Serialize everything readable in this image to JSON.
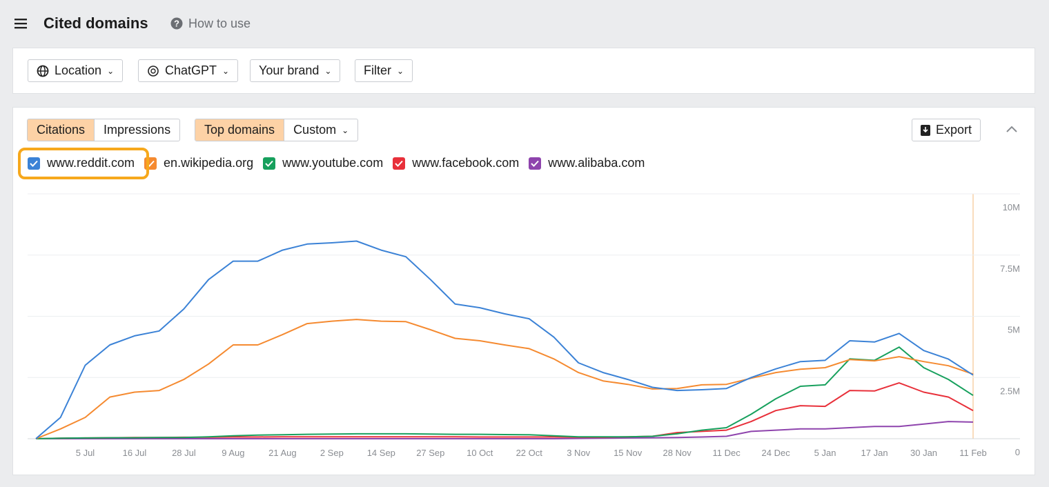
{
  "header": {
    "title": "Cited domains",
    "help": "How to use"
  },
  "filters": [
    "Location",
    "ChatGPT",
    "Your brand",
    "Filter"
  ],
  "tabs": {
    "metric": [
      "Citations",
      "Impressions"
    ],
    "view": [
      "Top domains",
      "Custom"
    ]
  },
  "export": "Export",
  "chart_data": {
    "type": "line",
    "categories": [
      null,
      null,
      "5 Jul",
      null,
      "16 Jul",
      null,
      "28 Jul",
      null,
      "9 Aug",
      null,
      "21 Aug",
      null,
      "2 Sep",
      null,
      "14 Sep",
      null,
      "27 Sep",
      null,
      "10 Oct",
      null,
      "22 Oct",
      null,
      "3 Nov",
      null,
      "15 Nov",
      null,
      "28 Nov",
      null,
      "11 Dec",
      null,
      "24 Dec",
      null,
      "5 Jan",
      null,
      "17 Jan",
      null,
      "30 Jan",
      null,
      "11 Feb"
    ],
    "series": [
      {
        "name": "www.reddit.com",
        "color": "#3b82d6",
        "values": [
          0,
          870000,
          3000000,
          3830000,
          4200000,
          4400000,
          5300000,
          6500000,
          7250000,
          7250000,
          7700000,
          7950000,
          8000000,
          8070000,
          7700000,
          7430000,
          6500000,
          5500000,
          5350000,
          5100000,
          4900000,
          4150000,
          3100000,
          2700000,
          2420000,
          2100000,
          1970000,
          2000000,
          2050000,
          2500000,
          2850000,
          3150000,
          3200000,
          4000000,
          3950000,
          4300000,
          3600000,
          3250000,
          2600000
        ]
      },
      {
        "name": "en.wikipedia.org",
        "color": "#f58a30",
        "values": [
          0,
          400000,
          870000,
          1700000,
          1900000,
          1970000,
          2420000,
          3050000,
          3830000,
          3830000,
          4250000,
          4700000,
          4800000,
          4870000,
          4800000,
          4780000,
          4450000,
          4100000,
          4000000,
          3830000,
          3680000,
          3260000,
          2700000,
          2360000,
          2220000,
          2030000,
          2050000,
          2200000,
          2220000,
          2470000,
          2700000,
          2840000,
          2900000,
          3230000,
          3180000,
          3350000,
          3150000,
          2980000,
          2640000
        ]
      },
      {
        "name": "www.youtube.com",
        "color": "#17a05d",
        "values": [
          0,
          20000,
          30000,
          40000,
          40000,
          50000,
          50000,
          80000,
          120000,
          150000,
          160000,
          180000,
          190000,
          200000,
          200000,
          200000,
          190000,
          180000,
          180000,
          170000,
          160000,
          120000,
          80000,
          80000,
          80000,
          100000,
          200000,
          350000,
          450000,
          1000000,
          1630000,
          2140000,
          2200000,
          3260000,
          3200000,
          3740000,
          2900000,
          2420000,
          1770000
        ]
      },
      {
        "name": "www.facebook.com",
        "color": "#e8303a",
        "values": [
          0,
          20000,
          30000,
          40000,
          50000,
          50000,
          60000,
          60000,
          70000,
          70000,
          80000,
          80000,
          80000,
          80000,
          80000,
          80000,
          80000,
          80000,
          70000,
          70000,
          70000,
          70000,
          60000,
          60000,
          80000,
          100000,
          250000,
          300000,
          350000,
          700000,
          1150000,
          1350000,
          1320000,
          1970000,
          1950000,
          2280000,
          1900000,
          1700000,
          1150000
        ]
      },
      {
        "name": "www.alibaba.com",
        "color": "#8e44ad",
        "values": [
          0,
          0,
          0,
          0,
          0,
          0,
          0,
          0,
          0,
          0,
          0,
          0,
          0,
          0,
          0,
          0,
          0,
          0,
          0,
          0,
          0,
          0,
          10000,
          20000,
          30000,
          40000,
          50000,
          70000,
          100000,
          300000,
          350000,
          400000,
          400000,
          450000,
          500000,
          500000,
          600000,
          700000,
          680000
        ]
      }
    ],
    "ylim": [
      0,
      10000000
    ],
    "yticks": [
      0,
      {
        "value": 2500000,
        "label": "2.5M"
      },
      {
        "value": 5000000,
        "label": "5M"
      },
      {
        "value": 7500000,
        "label": "7.5M"
      },
      {
        "value": 10000000,
        "label": "10M"
      }
    ],
    "grid": true
  }
}
